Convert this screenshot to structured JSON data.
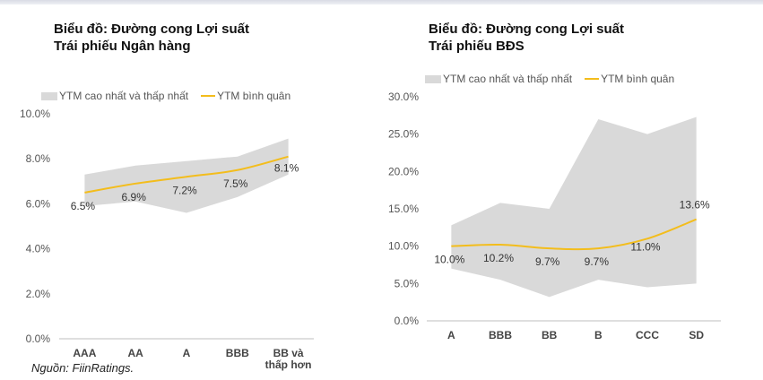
{
  "source": "Nguồn: FiinRatings.",
  "chart_data": [
    {
      "type": "area",
      "title_line1": "Biểu đồ: Đường cong Lợi suất",
      "title_line2": "Trái phiếu Ngân hàng",
      "legend": {
        "range": "YTM cao nhất và thấp nhất",
        "avg": "YTM bình quân"
      },
      "categories": [
        [
          "AAA"
        ],
        [
          "AA"
        ],
        [
          "A"
        ],
        [
          "BBB"
        ],
        [
          "BB và",
          "thấp hơn"
        ]
      ],
      "yticks": [
        "0.0%",
        "2.0%",
        "4.0%",
        "6.0%",
        "8.0%",
        "10.0%"
      ],
      "ylim": [
        0,
        10
      ],
      "series": [
        {
          "name": "YTM bình quân",
          "values": [
            6.5,
            6.9,
            7.2,
            7.5,
            8.1
          ],
          "labels": [
            "6.5%",
            "6.9%",
            "7.2%",
            "7.5%",
            "8.1%"
          ]
        }
      ],
      "range_high": [
        7.3,
        7.7,
        7.9,
        8.1,
        8.9
      ],
      "range_low": [
        5.9,
        6.1,
        5.6,
        6.3,
        7.3
      ],
      "colors": {
        "range": "#d9d9d9",
        "line": "#f3bd1c"
      }
    },
    {
      "type": "area",
      "title_line1": "Biểu đồ: Đường cong Lợi suất",
      "title_line2": "Trái phiếu BĐS",
      "legend": {
        "range": "YTM cao nhất và thấp nhất",
        "avg": "YTM bình quân"
      },
      "categories": [
        [
          "A"
        ],
        [
          "BBB"
        ],
        [
          "BB"
        ],
        [
          "B"
        ],
        [
          "CCC"
        ],
        [
          "SD"
        ]
      ],
      "yticks": [
        "0.0%",
        "5.0%",
        "10.0%",
        "15.0%",
        "20.0%",
        "25.0%",
        "30.0%"
      ],
      "ylim": [
        0,
        30
      ],
      "series": [
        {
          "name": "YTM bình quân",
          "values": [
            10.0,
            10.2,
            9.7,
            9.7,
            11.0,
            13.6
          ],
          "labels": [
            "10.0%",
            "10.2%",
            "9.7%",
            "9.7%",
            "11.0%",
            "13.6%"
          ]
        }
      ],
      "range_high": [
        12.8,
        15.8,
        15.0,
        27.0,
        25.0,
        27.3
      ],
      "range_low": [
        7.0,
        5.5,
        3.2,
        5.5,
        4.5,
        5.0
      ],
      "colors": {
        "range": "#d9d9d9",
        "line": "#f3bd1c"
      }
    }
  ]
}
